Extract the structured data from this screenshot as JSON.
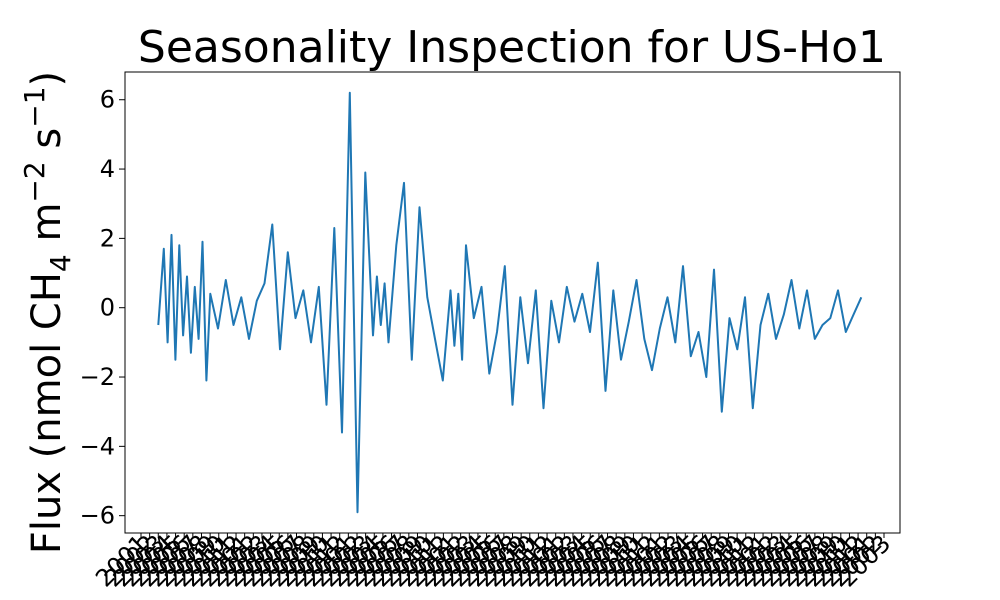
{
  "chart_data": {
    "type": "line",
    "title": "Seasonality Inspection for US-Ho1",
    "ylabel_parts": {
      "prefix": "Flux (nmol CH",
      "sub": "4",
      "mid": " m",
      "sup1": "−2",
      "mid2": " s",
      "sup2": "−1",
      "suffix": ")"
    },
    "xlabel": "",
    "ylim": [
      -6.5,
      6.8
    ],
    "yticks": [
      -6,
      -4,
      -2,
      0,
      2,
      4,
      6
    ],
    "ytick_labels": [
      "−6",
      "−4",
      "−2",
      "0",
      "2",
      "4",
      "6"
    ],
    "xtick_count": 87,
    "xtick_label_prefix": "20",
    "xlim": [
      0,
      1
    ],
    "grid": false,
    "line_color": "#1f77b4",
    "series": [
      {
        "x": [
          0.043,
          0.05,
          0.055,
          0.06,
          0.065,
          0.07,
          0.075,
          0.08,
          0.085,
          0.09,
          0.095,
          0.1,
          0.105,
          0.11,
          0.12,
          0.13,
          0.14,
          0.15,
          0.16,
          0.17,
          0.18,
          0.19,
          0.2,
          0.21,
          0.22,
          0.23,
          0.24,
          0.25,
          0.26,
          0.27,
          0.28,
          0.29,
          0.3,
          0.31,
          0.32,
          0.325,
          0.33,
          0.335,
          0.34,
          0.345,
          0.35,
          0.36,
          0.37,
          0.38,
          0.39,
          0.4,
          0.41,
          0.42,
          0.425,
          0.43,
          0.435,
          0.44,
          0.45,
          0.46,
          0.47,
          0.48,
          0.49,
          0.5,
          0.51,
          0.52,
          0.53,
          0.54,
          0.55,
          0.56,
          0.57,
          0.58,
          0.59,
          0.6,
          0.61,
          0.62,
          0.63,
          0.64,
          0.65,
          0.66,
          0.67,
          0.68,
          0.69,
          0.7,
          0.71,
          0.72,
          0.73,
          0.74,
          0.75,
          0.76,
          0.77,
          0.78,
          0.79,
          0.8,
          0.81,
          0.82,
          0.83,
          0.84,
          0.85,
          0.86,
          0.87,
          0.88,
          0.89,
          0.9,
          0.91,
          0.92,
          0.93,
          0.94,
          0.95
        ],
        "y": [
          -0.5,
          1.7,
          -1.0,
          2.1,
          -1.5,
          1.8,
          -0.8,
          0.9,
          -1.3,
          0.6,
          -0.9,
          1.9,
          -2.1,
          0.4,
          -0.6,
          0.8,
          -0.5,
          0.3,
          -0.9,
          0.2,
          0.7,
          2.4,
          -1.2,
          1.6,
          -0.3,
          0.5,
          -1.0,
          0.6,
          -2.8,
          2.3,
          -3.6,
          6.2,
          -5.9,
          3.9,
          -0.8,
          0.9,
          -0.5,
          0.7,
          -1.0,
          0.4,
          1.8,
          3.6,
          -1.5,
          2.9,
          0.3,
          -0.9,
          -2.1,
          0.5,
          -1.1,
          0.4,
          -1.5,
          1.8,
          -0.3,
          0.6,
          -1.9,
          -0.7,
          1.2,
          -2.8,
          0.3,
          -1.6,
          0.5,
          -2.9,
          0.2,
          -1.0,
          0.6,
          -0.4,
          0.4,
          -0.7,
          1.3,
          -2.4,
          0.5,
          -1.5,
          -0.4,
          0.8,
          -0.9,
          -1.8,
          -0.6,
          0.3,
          -1.0,
          1.2,
          -1.4,
          -0.7,
          -2.0,
          1.1,
          -3.0,
          -0.3,
          -1.2,
          0.3,
          -2.9,
          -0.5,
          0.4,
          -0.9,
          -0.2,
          0.8,
          -0.6,
          0.5,
          -0.9,
          -0.5,
          -0.3,
          0.5,
          -0.7,
          -0.2,
          0.3
        ],
        "name": ""
      }
    ]
  }
}
